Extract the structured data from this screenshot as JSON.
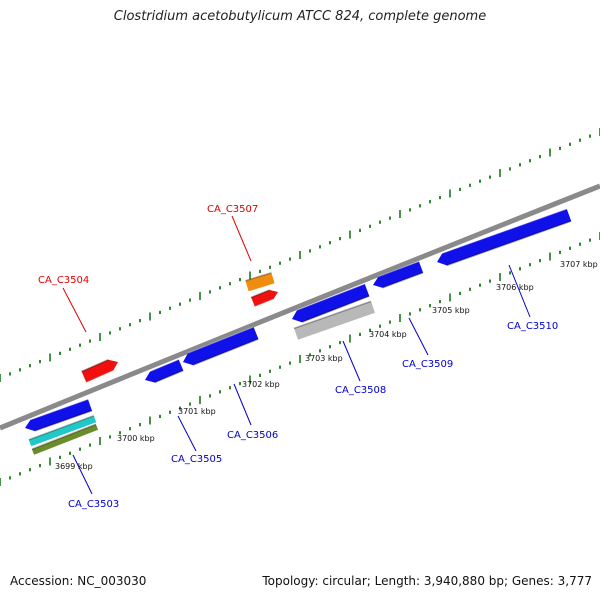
{
  "title": "Clostridium acetobutylicum ATCC 824, complete genome",
  "accession_label": "Accession: NC_003030",
  "summary_label": "Topology: circular; Length: 3,940,880 bp; Genes: 3,777",
  "colors": {
    "backbone": "#8a8a8a",
    "tick": "#1a7a1a",
    "forward_label": "#e00000",
    "reverse_label": "#0000cc"
  },
  "ticks": [
    {
      "label": "3699 kbp"
    },
    {
      "label": "3700 kbp"
    },
    {
      "label": "3701 kbp"
    },
    {
      "label": "3702 kbp"
    },
    {
      "label": "3703 kbp"
    },
    {
      "label": "3704 kbp"
    },
    {
      "label": "3705 kbp"
    },
    {
      "label": "3706 kbp"
    },
    {
      "label": "3707 kbp"
    }
  ],
  "genes": [
    {
      "label": "CA_C3503",
      "strand": "reverse",
      "color": "#1010e8"
    },
    {
      "label": "CA_C3504",
      "strand": "forward",
      "color": "#f01010"
    },
    {
      "label": "CA_C3505",
      "strand": "reverse",
      "color": "#1010e8"
    },
    {
      "label": "CA_C3506",
      "strand": "reverse",
      "color": "#1010e8"
    },
    {
      "label": "CA_C3507",
      "strand": "forward",
      "color": "#f01010"
    },
    {
      "label": "CA_C3508",
      "strand": "reverse",
      "color": "#1010e8"
    },
    {
      "label": "CA_C3509",
      "strand": "reverse",
      "color": "#1010e8"
    },
    {
      "label": "CA_C3510",
      "strand": "reverse",
      "color": "#1010e8"
    }
  ],
  "features": [
    {
      "name": "cyan-feature",
      "color": "#20c8c8"
    },
    {
      "name": "olive-feature",
      "color": "#6a8c2a"
    },
    {
      "name": "orange-feature",
      "color": "#f08c10"
    },
    {
      "name": "grey-feature",
      "color": "#b8b8b8"
    }
  ]
}
